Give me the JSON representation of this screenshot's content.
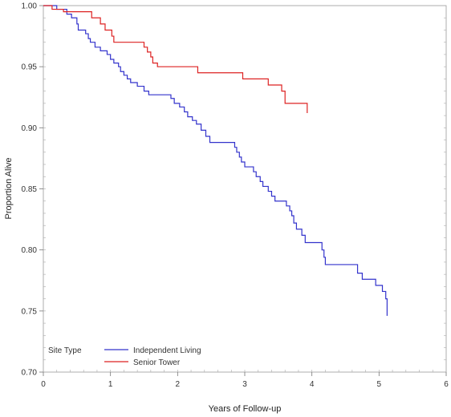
{
  "chart_data": {
    "type": "line",
    "title": "",
    "xlabel": "Years of Follow-up",
    "ylabel": "Proportion Alive",
    "xlim": [
      0,
      6
    ],
    "ylim": [
      0.7,
      1.0
    ],
    "x_ticks": [
      "0",
      "1",
      "2",
      "3",
      "4",
      "5",
      "6"
    ],
    "y_ticks": [
      "0.70",
      "0.75",
      "0.80",
      "0.85",
      "0.90",
      "0.95",
      "1.00"
    ],
    "grid": false,
    "legend": {
      "title": "Site Type",
      "placement": "bottom-left"
    },
    "series": [
      {
        "name": "Independent Living",
        "color": "#3333cc",
        "step": true,
        "points": [
          [
            0,
            1.0
          ],
          [
            0.2,
            0.997
          ],
          [
            0.35,
            0.993
          ],
          [
            0.42,
            0.99
          ],
          [
            0.5,
            0.985
          ],
          [
            0.52,
            0.98
          ],
          [
            0.63,
            0.977
          ],
          [
            0.67,
            0.973
          ],
          [
            0.7,
            0.97
          ],
          [
            0.77,
            0.966
          ],
          [
            0.85,
            0.963
          ],
          [
            0.95,
            0.96
          ],
          [
            1.0,
            0.956
          ],
          [
            1.05,
            0.953
          ],
          [
            1.12,
            0.95
          ],
          [
            1.15,
            0.946
          ],
          [
            1.2,
            0.943
          ],
          [
            1.25,
            0.94
          ],
          [
            1.3,
            0.937
          ],
          [
            1.4,
            0.934
          ],
          [
            1.5,
            0.93
          ],
          [
            1.57,
            0.927
          ],
          [
            1.9,
            0.924
          ],
          [
            1.95,
            0.92
          ],
          [
            2.03,
            0.917
          ],
          [
            2.1,
            0.913
          ],
          [
            2.15,
            0.909
          ],
          [
            2.22,
            0.906
          ],
          [
            2.28,
            0.903
          ],
          [
            2.35,
            0.898
          ],
          [
            2.42,
            0.893
          ],
          [
            2.48,
            0.888
          ],
          [
            2.85,
            0.884
          ],
          [
            2.88,
            0.88
          ],
          [
            2.92,
            0.876
          ],
          [
            2.95,
            0.872
          ],
          [
            3.0,
            0.868
          ],
          [
            3.13,
            0.864
          ],
          [
            3.17,
            0.86
          ],
          [
            3.23,
            0.856
          ],
          [
            3.27,
            0.852
          ],
          [
            3.35,
            0.848
          ],
          [
            3.4,
            0.844
          ],
          [
            3.45,
            0.84
          ],
          [
            3.62,
            0.836
          ],
          [
            3.67,
            0.832
          ],
          [
            3.7,
            0.828
          ],
          [
            3.73,
            0.822
          ],
          [
            3.77,
            0.817
          ],
          [
            3.85,
            0.812
          ],
          [
            3.9,
            0.806
          ],
          [
            4.15,
            0.8
          ],
          [
            4.18,
            0.794
          ],
          [
            4.2,
            0.788
          ],
          [
            4.68,
            0.781
          ],
          [
            4.75,
            0.776
          ],
          [
            4.95,
            0.771
          ],
          [
            5.05,
            0.766
          ],
          [
            5.1,
            0.76
          ],
          [
            5.12,
            0.75
          ],
          [
            5.12,
            0.746
          ]
        ]
      },
      {
        "name": "Senior Tower",
        "color": "#dd2222",
        "step": true,
        "points": [
          [
            0,
            1.0
          ],
          [
            0.13,
            0.997
          ],
          [
            0.3,
            0.995
          ],
          [
            0.72,
            0.99
          ],
          [
            0.85,
            0.985
          ],
          [
            0.92,
            0.98
          ],
          [
            1.02,
            0.975
          ],
          [
            1.05,
            0.97
          ],
          [
            1.5,
            0.966
          ],
          [
            1.55,
            0.962
          ],
          [
            1.6,
            0.958
          ],
          [
            1.63,
            0.953
          ],
          [
            1.7,
            0.95
          ],
          [
            2.3,
            0.945
          ],
          [
            2.97,
            0.94
          ],
          [
            3.35,
            0.935
          ],
          [
            3.55,
            0.93
          ],
          [
            3.6,
            0.92
          ],
          [
            3.93,
            0.912
          ]
        ]
      }
    ]
  }
}
